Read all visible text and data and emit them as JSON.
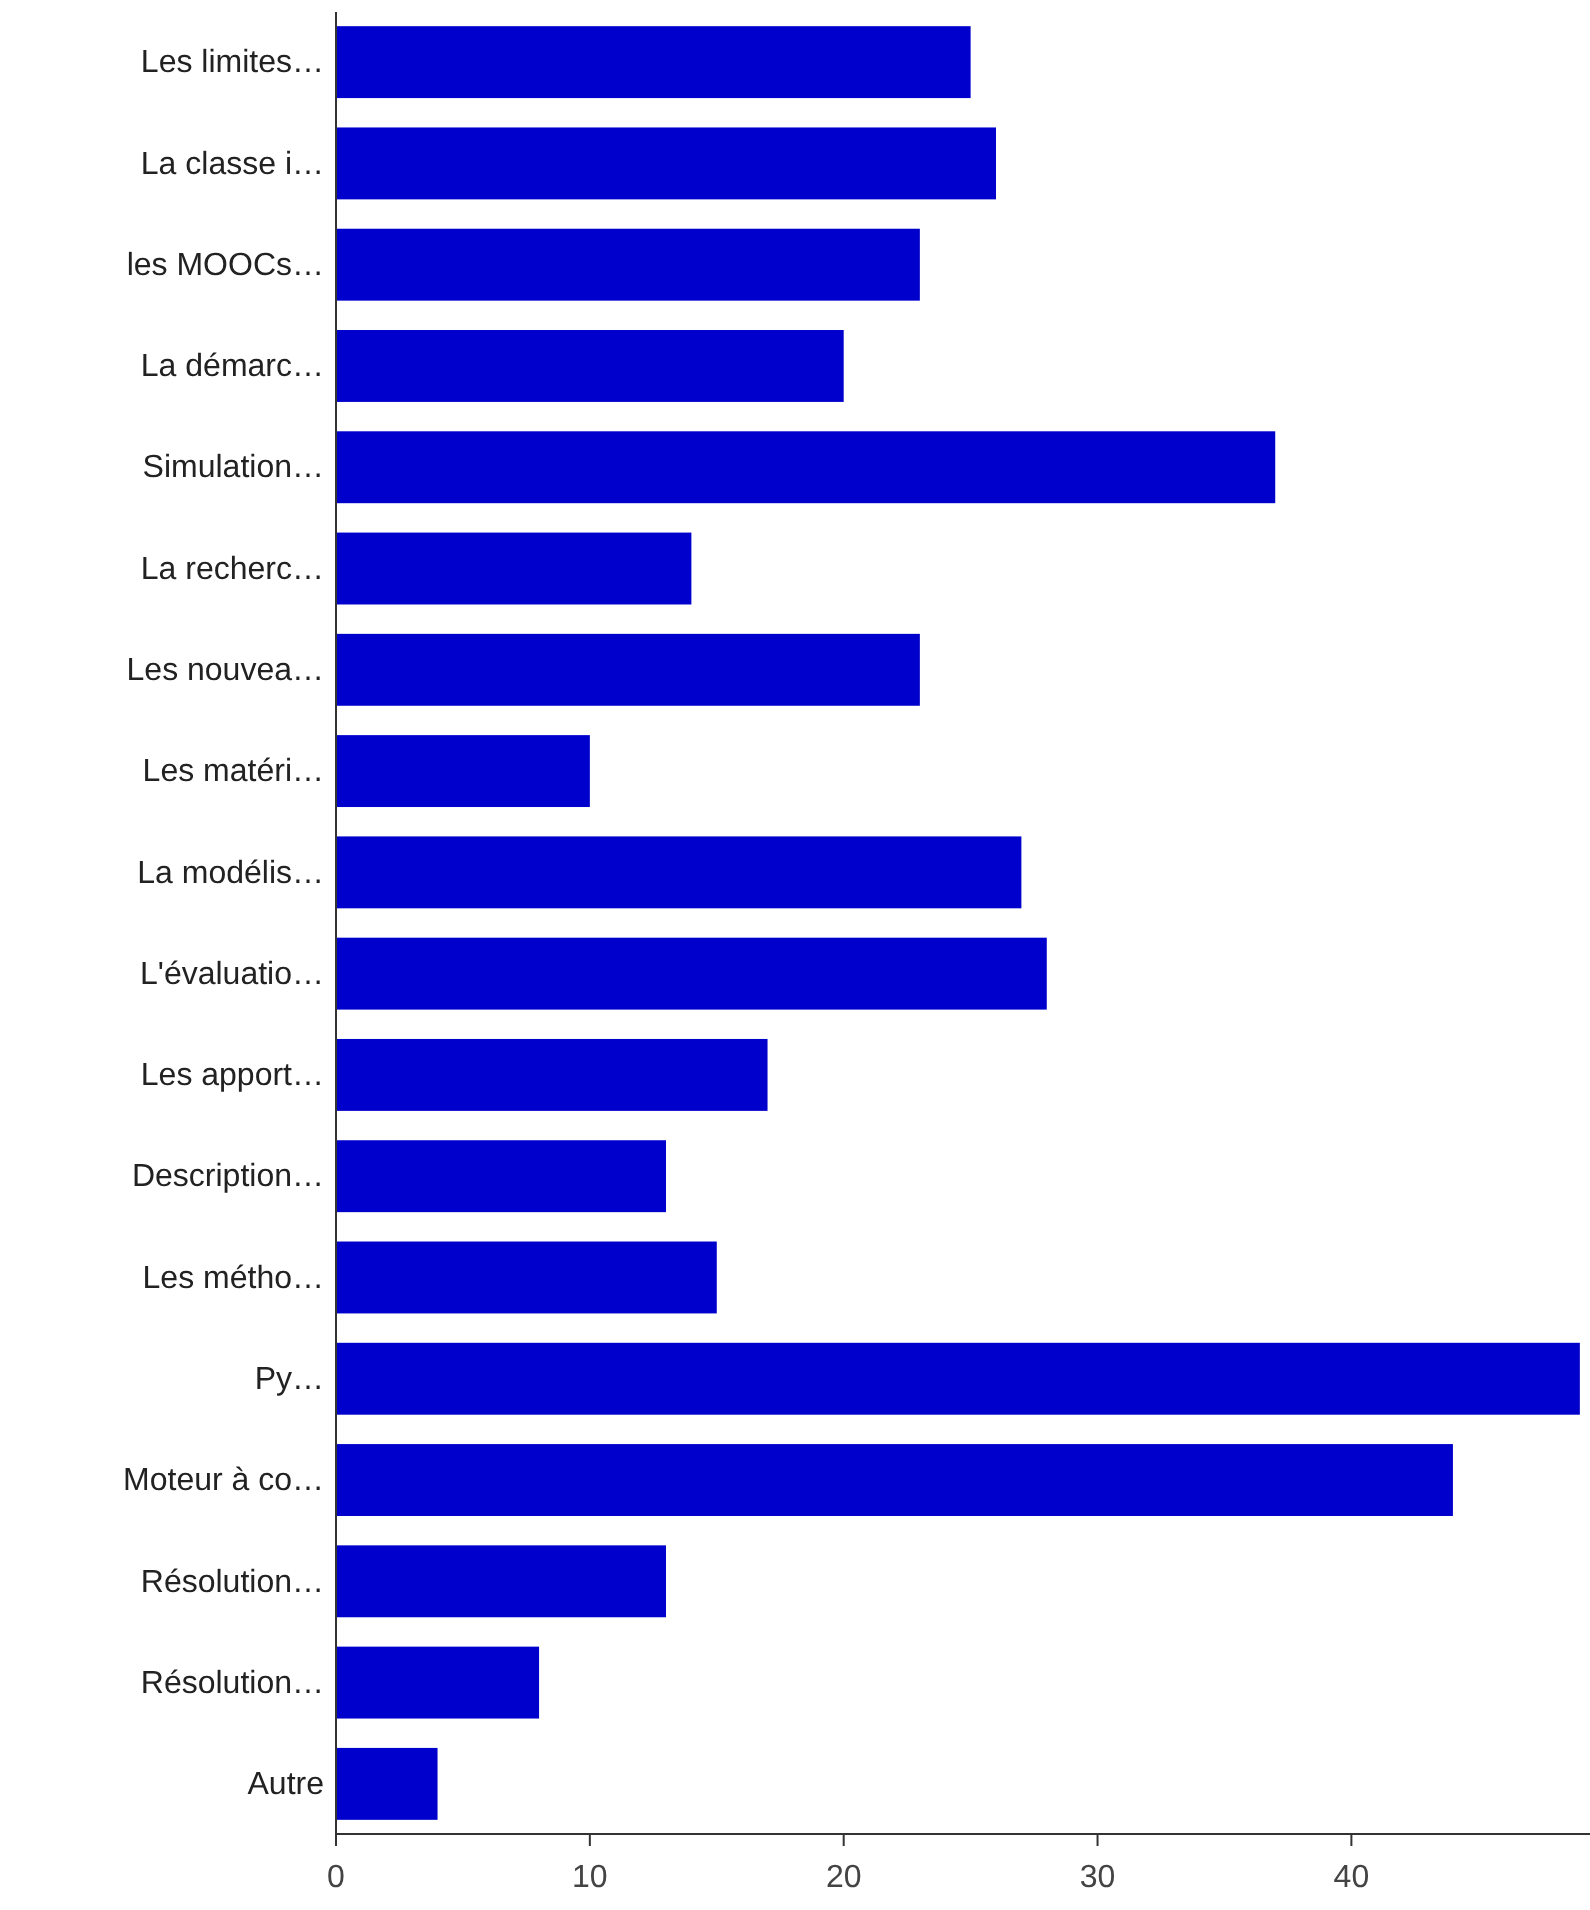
{
  "chart_data": {
    "type": "bar",
    "orientation": "horizontal",
    "categories": [
      "Les limites…",
      "La classe i…",
      "les MOOCs…",
      "La démarc…",
      "Simulation…",
      "La recherc…",
      "Les nouvea…",
      "Les matéri…",
      "La modélis…",
      "L'évaluatio…",
      "Les apport…",
      "Description…",
      "Les métho…",
      "Py…",
      "Moteur à co…",
      "Résolution…",
      "Résolution…",
      "Autre"
    ],
    "values": [
      25,
      26,
      23,
      20,
      37,
      14,
      23,
      10,
      27,
      28,
      17,
      13,
      15,
      49,
      44,
      13,
      8,
      4
    ],
    "color": "#0000cc",
    "xlim": [
      0,
      49.4
    ],
    "xticks": [
      0,
      10,
      20,
      30,
      40
    ],
    "grid": false
  }
}
